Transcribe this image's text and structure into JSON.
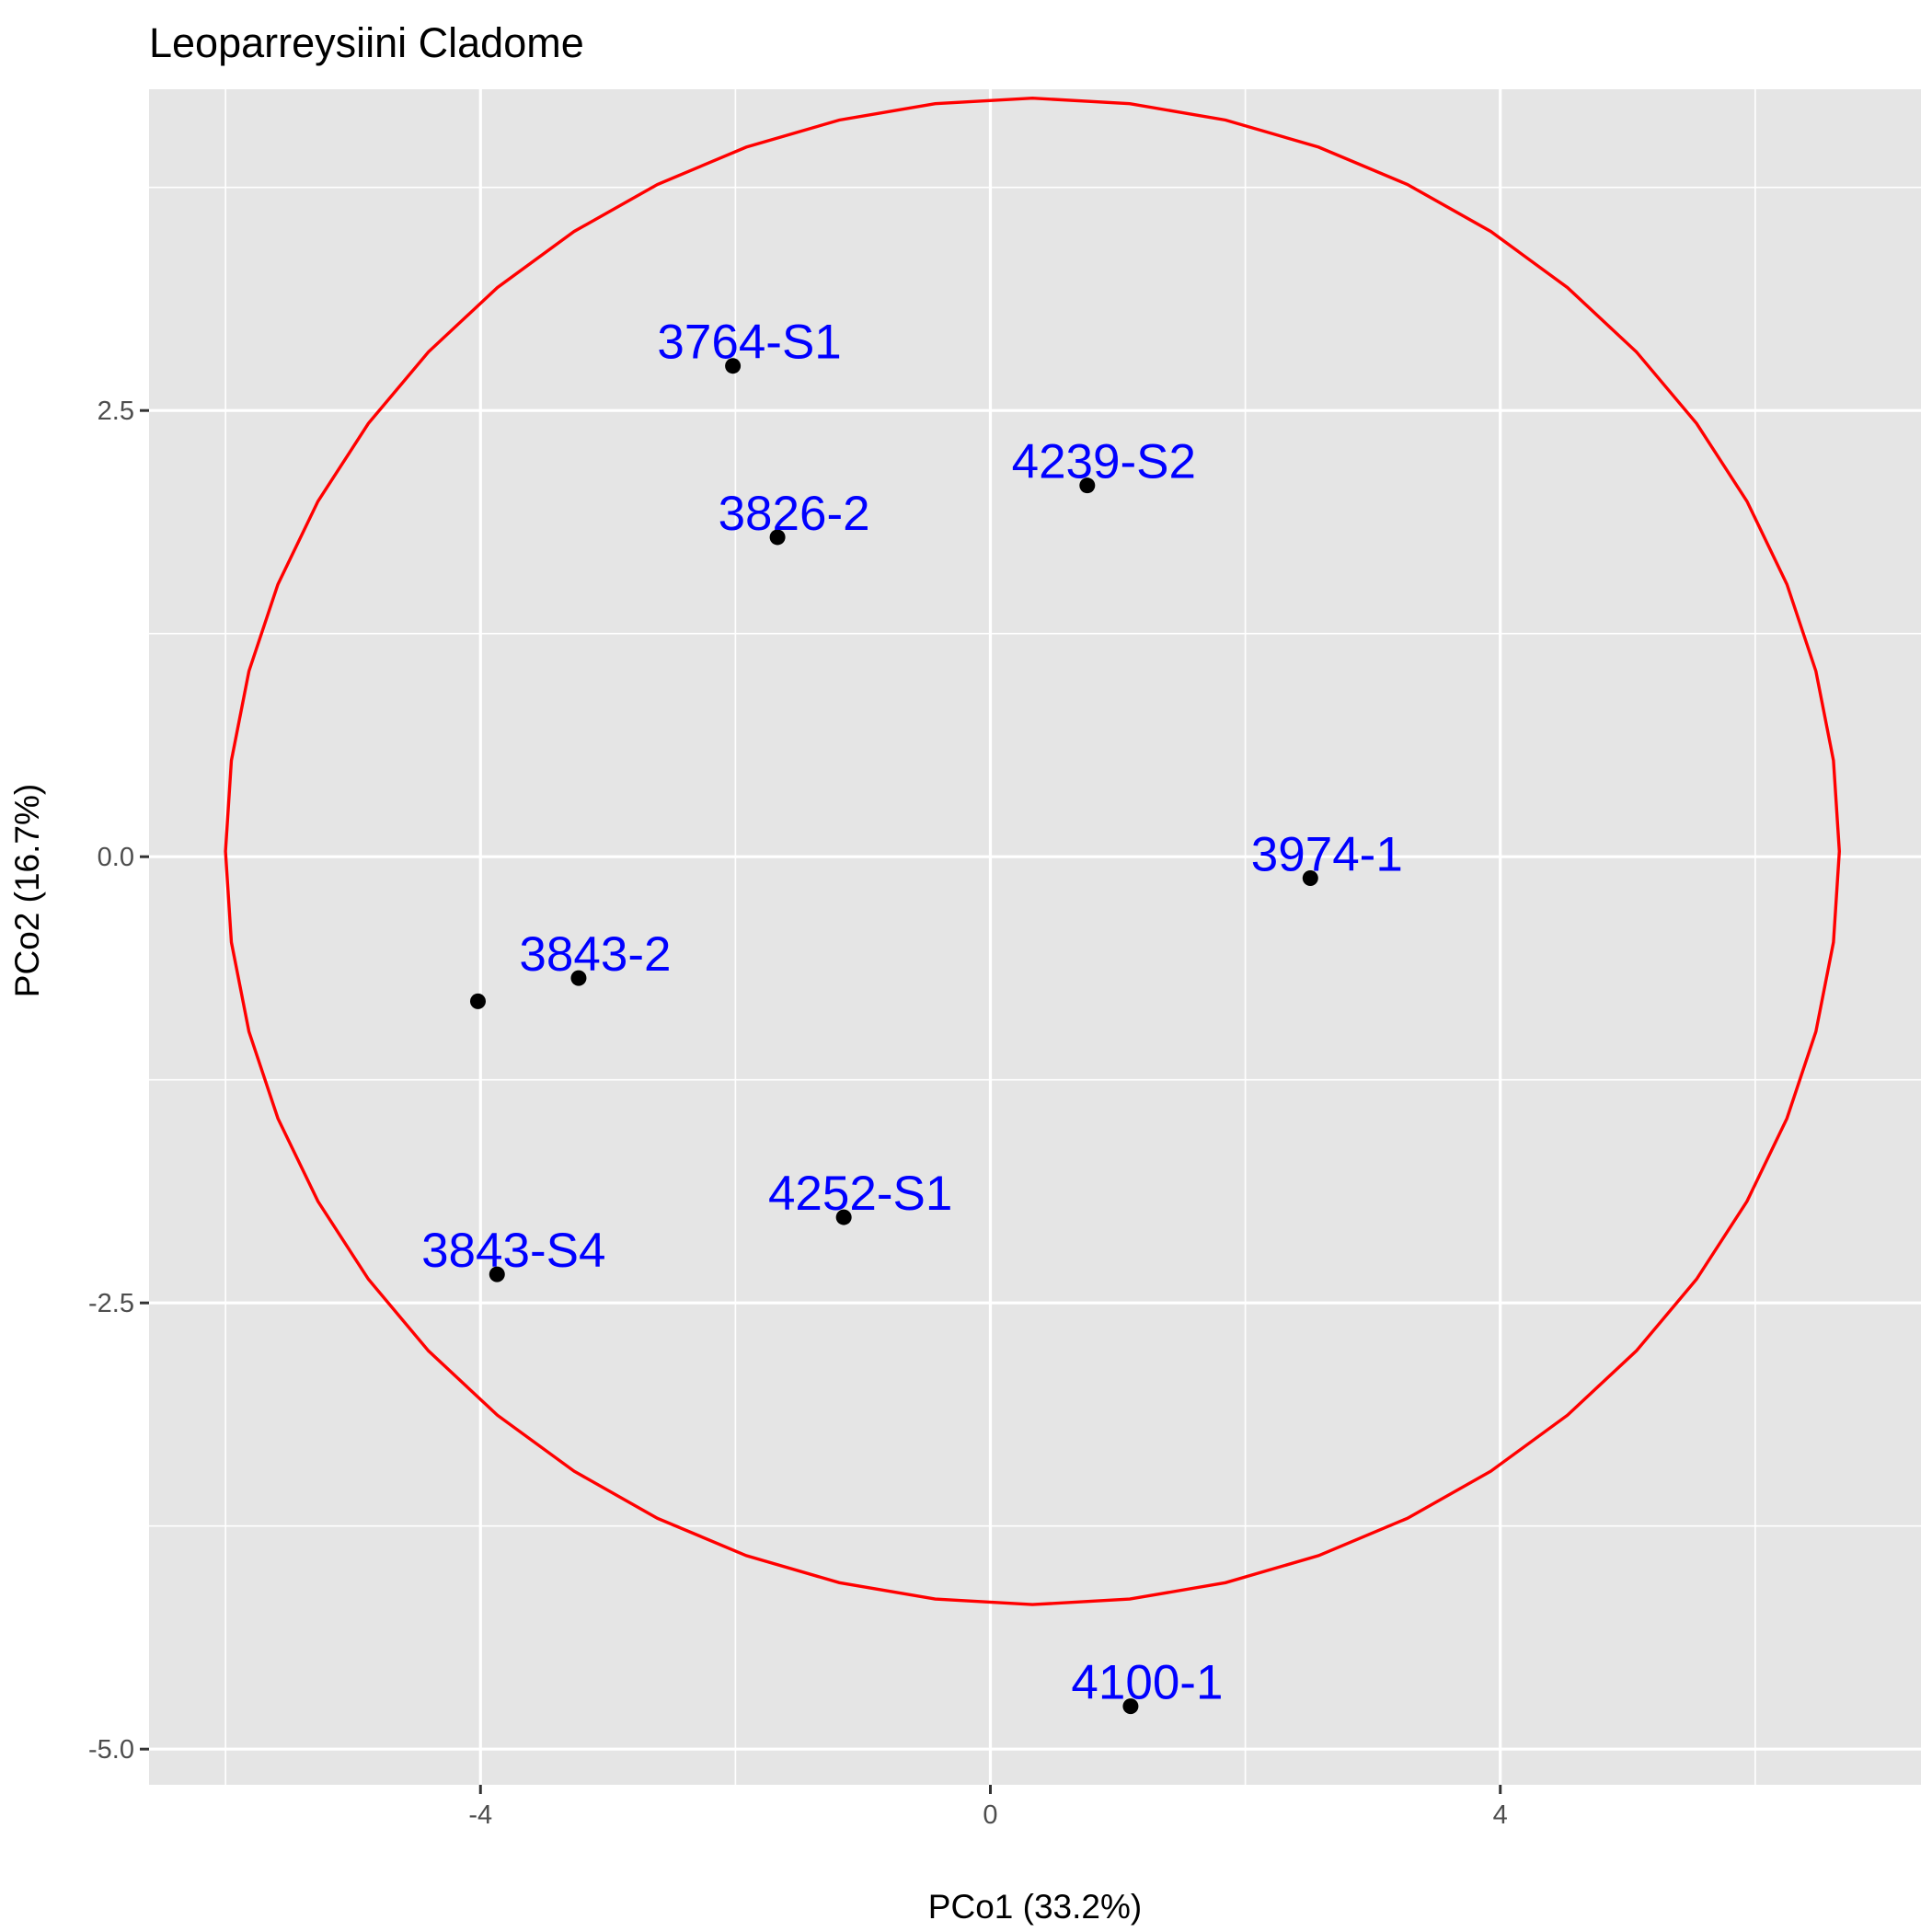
{
  "chart_data": {
    "type": "scatter",
    "title": "Leoparreysiini Cladome",
    "xlabel": "PCo1 (33.2%)",
    "ylabel": "PCo2 (16.7%)",
    "xlim": [
      -6.6,
      7.3
    ],
    "ylim": [
      -5.2,
      4.3
    ],
    "x_ticks": [
      -4,
      0,
      4
    ],
    "x_tick_labels": [
      "-4",
      "0",
      "4"
    ],
    "y_ticks": [
      -5.0,
      -2.5,
      0.0,
      2.5
    ],
    "y_tick_labels": [
      "-5.0",
      "-2.5",
      "0.0",
      "2.5"
    ],
    "grid": true,
    "colors": {
      "points": "#000000",
      "labels": "#0000ff",
      "ellipse": "#ff0000",
      "panel": "#e5e5e5"
    },
    "points": [
      {
        "x": -2.02,
        "y": 2.75,
        "label": "3764-S1"
      },
      {
        "x": 0.76,
        "y": 2.08,
        "label": "4239-S2"
      },
      {
        "x": -1.67,
        "y": 1.79,
        "label": "3826-2"
      },
      {
        "x": 2.51,
        "y": -0.12,
        "label": "3974-1"
      },
      {
        "x": -3.23,
        "y": -0.68,
        "label": "3843-2"
      },
      {
        "x": -4.02,
        "y": -0.81,
        "label": ""
      },
      {
        "x": -1.15,
        "y": -2.02,
        "label": "4252-S1"
      },
      {
        "x": -3.87,
        "y": -2.34,
        "label": "3843-S4"
      },
      {
        "x": 1.1,
        "y": -4.76,
        "label": "4100-1"
      }
    ],
    "ellipse": {
      "center_x": 0.33,
      "center_y": 0.03,
      "radius_x": 6.33,
      "radius_y": 4.22
    }
  }
}
